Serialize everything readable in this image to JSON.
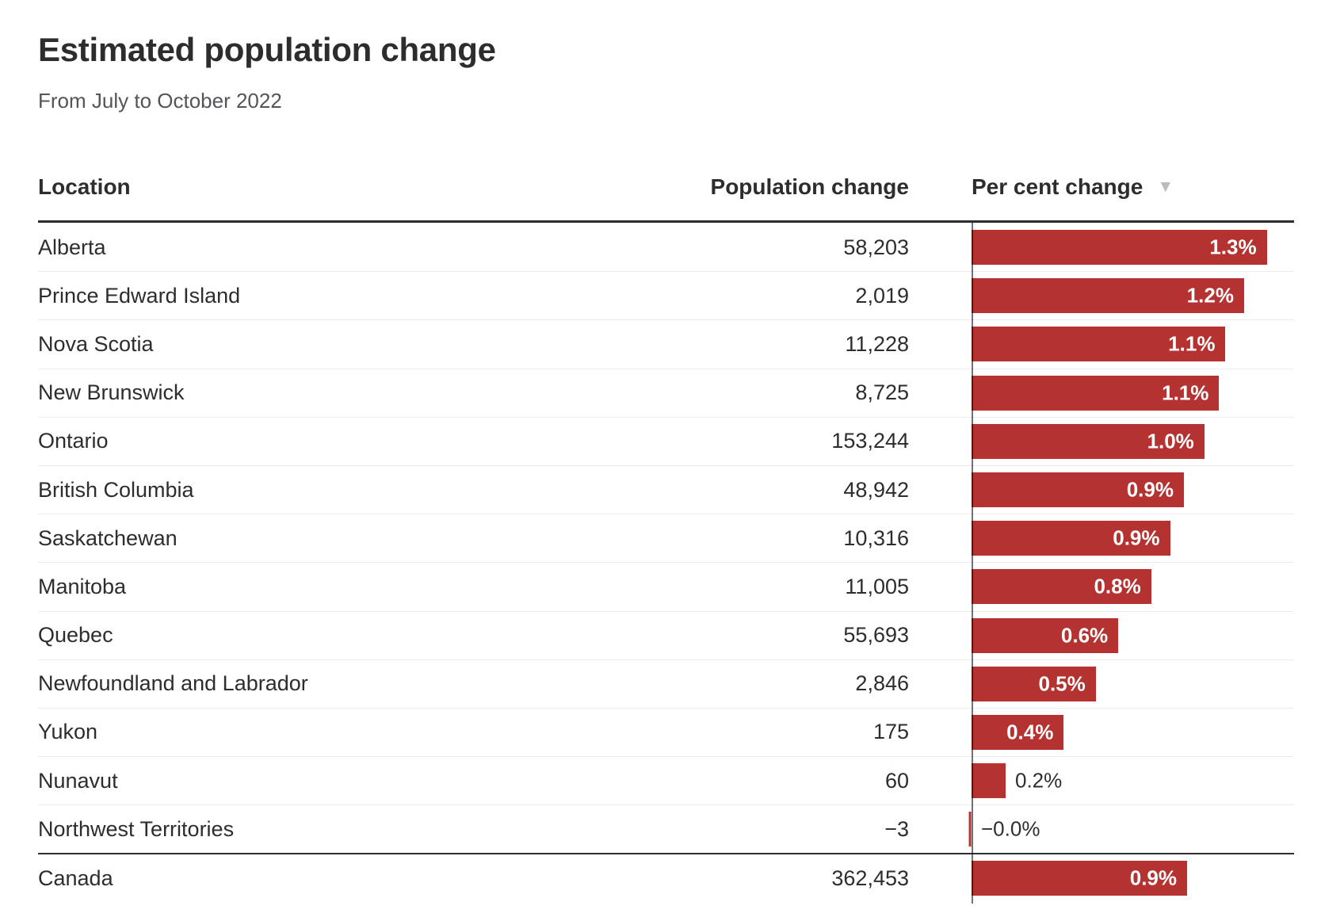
{
  "title": "Estimated population change",
  "subtitle": "From July to October 2022",
  "columns": {
    "location": "Location",
    "population_change": "Population change",
    "percent_change": "Per cent change",
    "sort_icon": "▼"
  },
  "rows": [
    {
      "location": "Alberta",
      "population_change": "58,203",
      "percent_label": "1.3%",
      "percent_value": 1.3,
      "label_inside": true
    },
    {
      "location": "Prince Edward Island",
      "population_change": "2,019",
      "percent_label": "1.2%",
      "percent_value": 1.2,
      "label_inside": true
    },
    {
      "location": "Nova Scotia",
      "population_change": "11,228",
      "percent_label": "1.1%",
      "percent_value": 1.118,
      "label_inside": true
    },
    {
      "location": "New Brunswick",
      "population_change": "8,725",
      "percent_label": "1.1%",
      "percent_value": 1.09,
      "label_inside": true
    },
    {
      "location": "Ontario",
      "population_change": "153,244",
      "percent_label": "1.0%",
      "percent_value": 1.025,
      "label_inside": true
    },
    {
      "location": "British Columbia",
      "population_change": "48,942",
      "percent_label": "0.9%",
      "percent_value": 0.935,
      "label_inside": true
    },
    {
      "location": "Saskatchewan",
      "population_change": "10,316",
      "percent_label": "0.9%",
      "percent_value": 0.874,
      "label_inside": true
    },
    {
      "location": "Manitoba",
      "population_change": "11,005",
      "percent_label": "0.8%",
      "percent_value": 0.791,
      "label_inside": true
    },
    {
      "location": "Quebec",
      "population_change": "55,693",
      "percent_label": "0.6%",
      "percent_value": 0.646,
      "label_inside": true
    },
    {
      "location": "Newfoundland and Labrador",
      "population_change": "2,846",
      "percent_label": "0.5%",
      "percent_value": 0.547,
      "label_inside": true
    },
    {
      "location": "Yukon",
      "population_change": "175",
      "percent_label": "0.4%",
      "percent_value": 0.406,
      "label_inside": true
    },
    {
      "location": "Nunavut",
      "population_change": "60",
      "percent_label": "0.2%",
      "percent_value": 0.15,
      "label_inside": false
    },
    {
      "location": "Northwest Territories",
      "population_change": "−3",
      "percent_label": "−0.0%",
      "percent_value": -0.012,
      "label_inside": false
    },
    {
      "location": "Canada",
      "population_change": "362,453",
      "percent_label": "0.9%",
      "percent_value": 0.949,
      "label_inside": true
    }
  ],
  "chart_data": {
    "type": "bar",
    "orientation": "horizontal",
    "title": "Estimated population change",
    "subtitle": "From July to October 2022",
    "categories": [
      "Alberta",
      "Prince Edward Island",
      "Nova Scotia",
      "New Brunswick",
      "Ontario",
      "British Columbia",
      "Saskatchewan",
      "Manitoba",
      "Quebec",
      "Newfoundland and Labrador",
      "Yukon",
      "Nunavut",
      "Northwest Territories",
      "Canada"
    ],
    "series": [
      {
        "name": "Population change",
        "values": [
          58203,
          2019,
          11228,
          8725,
          153244,
          48942,
          10316,
          11005,
          55693,
          2846,
          175,
          60,
          -3,
          362453
        ]
      },
      {
        "name": "Per cent change (labelled)",
        "values": [
          1.3,
          1.2,
          1.1,
          1.1,
          1.0,
          0.9,
          0.9,
          0.8,
          0.6,
          0.5,
          0.4,
          0.2,
          -0.0,
          0.9
        ]
      },
      {
        "name": "Per cent change (bar length, estimated)",
        "values": [
          1.3,
          1.2,
          1.118,
          1.09,
          1.025,
          0.935,
          0.874,
          0.791,
          0.646,
          0.547,
          0.406,
          0.15,
          -0.012,
          0.949
        ]
      }
    ],
    "xlim": [
      0,
      1.42
    ],
    "grid": false,
    "legend_position": "none",
    "sort": "Per cent change descending",
    "bar_color": "#b43331",
    "bar_label_color_inside": "#ffffff",
    "bar_label_color_outside": "#2e2e2e",
    "axis_line_color": "#555555"
  }
}
